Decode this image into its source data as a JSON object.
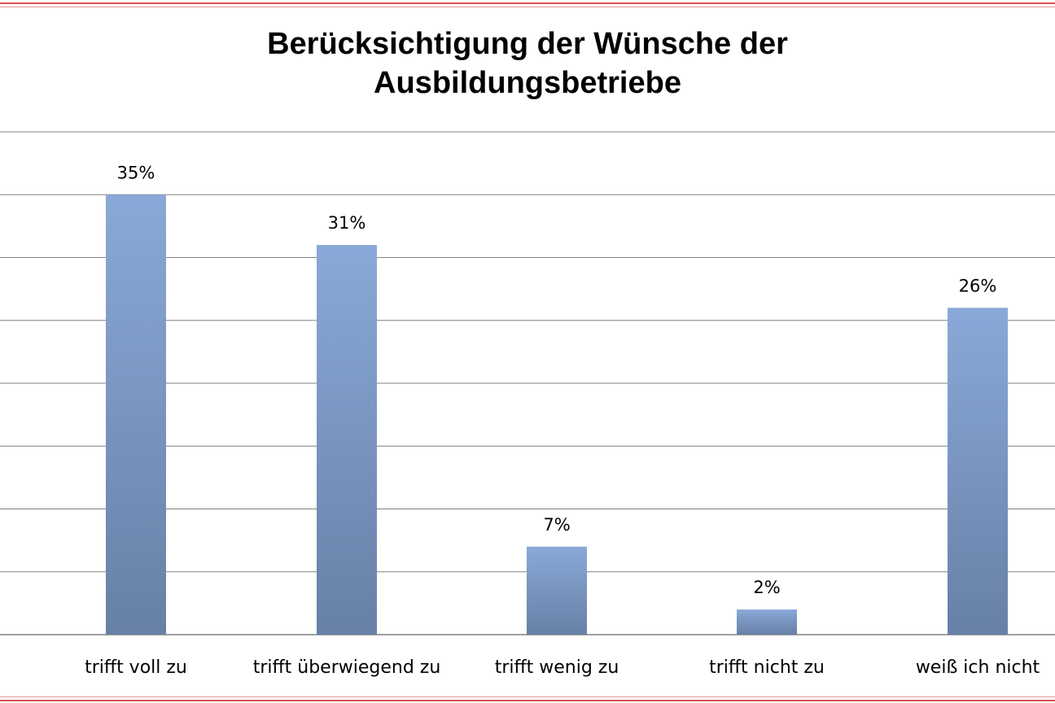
{
  "chart_data": {
    "type": "bar",
    "title_lines": [
      "Berücksichtigung der Wünsche der",
      "Ausbildungsbetriebe"
    ],
    "categories": [
      "trifft voll zu",
      "trifft überwiegend  zu",
      "trifft wenig zu",
      "trifft nicht zu",
      "weiß ich nicht"
    ],
    "values": [
      35,
      31,
      7,
      2,
      26
    ],
    "value_labels": [
      "35%",
      "31%",
      "7%",
      "2%",
      "26%"
    ],
    "ylim": [
      0,
      40
    ],
    "grid": true,
    "legend": "none",
    "colors": {
      "bar_top": "#8aa9d8",
      "bar_bottom": "#6780a6",
      "grid": "#808080",
      "frame": "#d9534f"
    }
  }
}
